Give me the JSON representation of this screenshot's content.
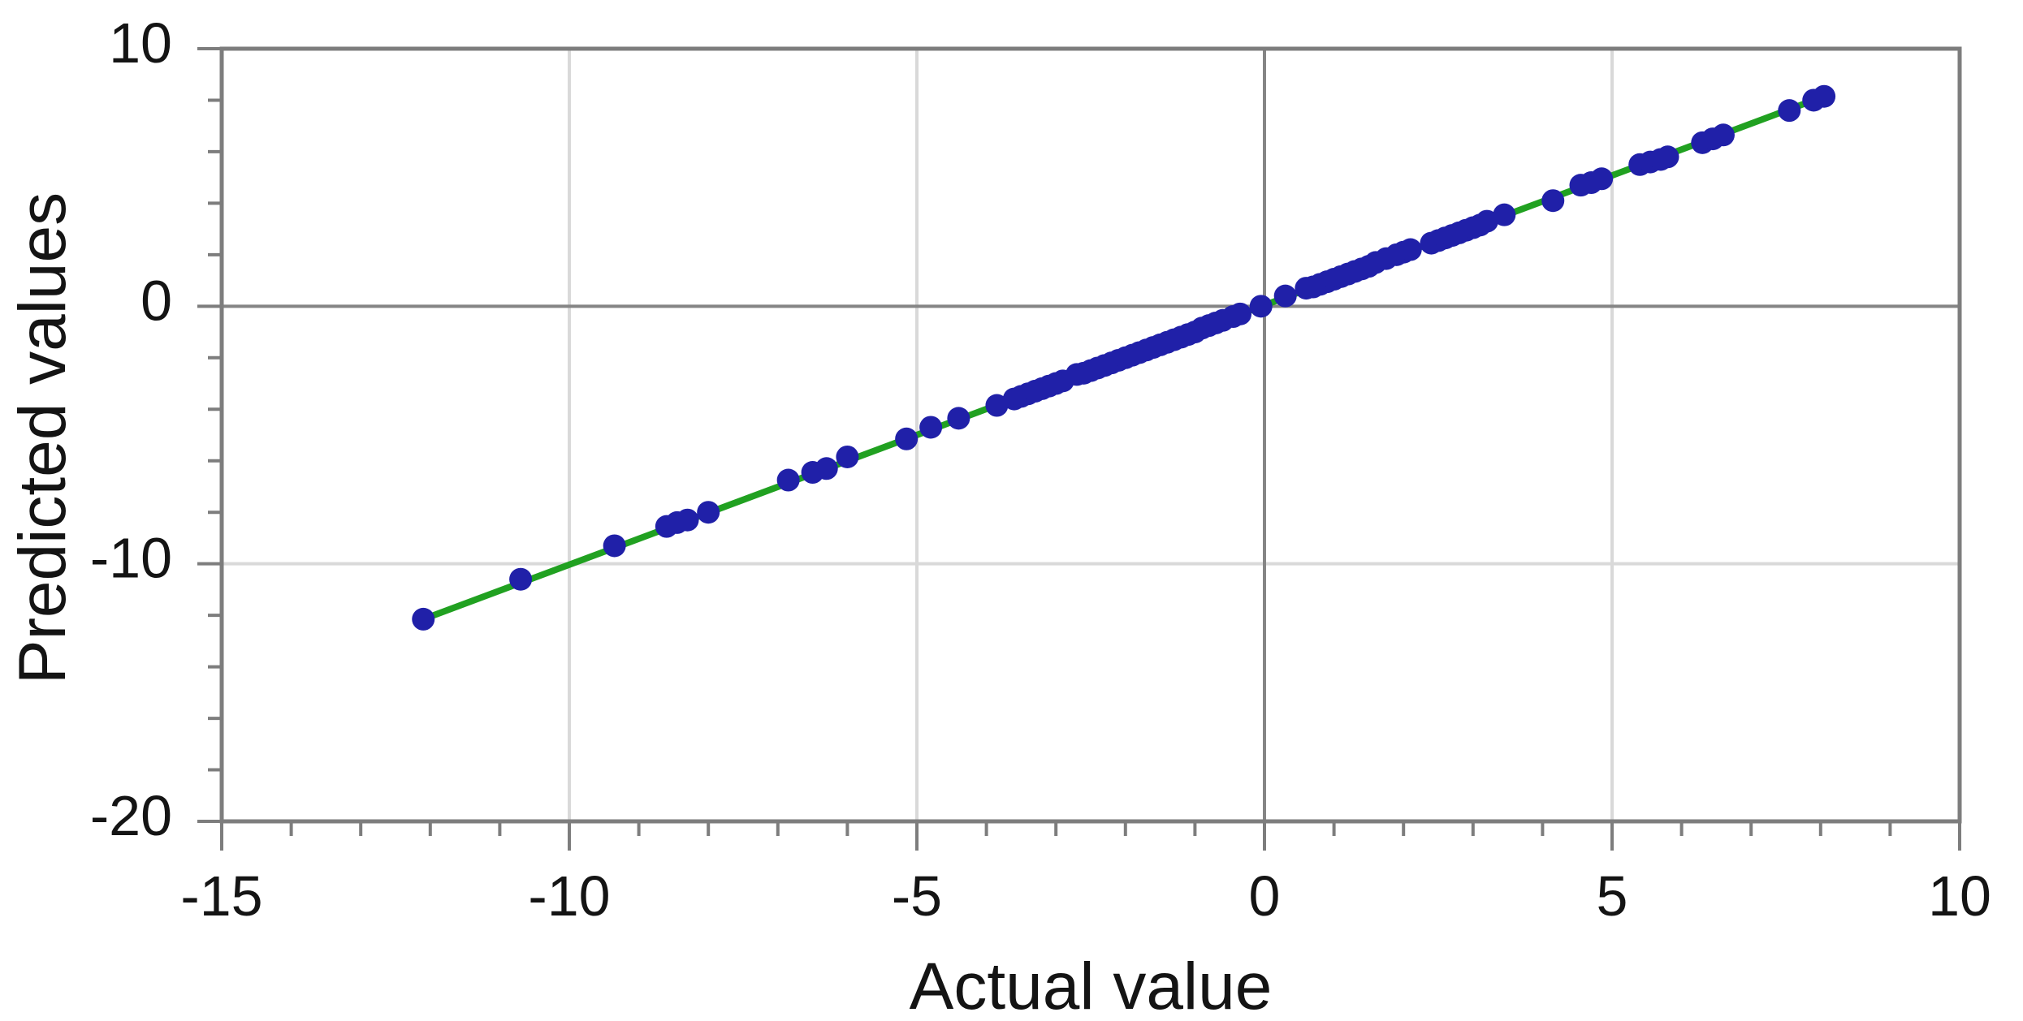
{
  "chart_data": {
    "type": "scatter",
    "title": "",
    "xlabel": "Actual value",
    "ylabel": "Predicted values",
    "xlim": [
      -15,
      10
    ],
    "ylim": [
      -20,
      10
    ],
    "x_major_ticks": [
      -15,
      -10,
      -5,
      0,
      5,
      10
    ],
    "x_tick_labels": [
      "-15",
      "-10",
      "-5",
      "0",
      "5",
      "10"
    ],
    "x_minor_step": 1,
    "y_major_ticks": [
      10,
      0,
      -10,
      -20
    ],
    "y_tick_labels": [
      "10",
      "0",
      "-10",
      "-20"
    ],
    "y_minor_step": 2,
    "grid": {
      "x_light": [
        -10,
        -5,
        5
      ],
      "x_dark": [
        0
      ],
      "y_light": [
        -10
      ],
      "y_dark": [
        0
      ]
    },
    "legend": null,
    "fit_line": {
      "name": "fit-line",
      "from": [
        -12.1,
        -12.15
      ],
      "to": [
        8.05,
        8.15
      ]
    },
    "series": [
      {
        "name": "predicted-vs-actual",
        "points": [
          [
            -12.1,
            -12.15
          ],
          [
            -10.7,
            -10.6
          ],
          [
            -9.35,
            -9.3
          ],
          [
            -8.6,
            -8.55
          ],
          [
            -8.45,
            -8.4
          ],
          [
            -8.3,
            -8.3
          ],
          [
            -8.0,
            -8.0
          ],
          [
            -6.85,
            -6.75
          ],
          [
            -6.5,
            -6.45
          ],
          [
            -6.3,
            -6.3
          ],
          [
            -6.0,
            -5.85
          ],
          [
            -5.15,
            -5.15
          ],
          [
            -4.8,
            -4.7
          ],
          [
            -4.4,
            -4.35
          ],
          [
            -3.85,
            -3.85
          ],
          [
            -3.6,
            -3.6
          ],
          [
            -3.5,
            -3.5
          ],
          [
            -3.4,
            -3.4
          ],
          [
            -3.3,
            -3.3
          ],
          [
            -3.2,
            -3.2
          ],
          [
            -3.1,
            -3.1
          ],
          [
            -3.0,
            -3.0
          ],
          [
            -2.9,
            -2.9
          ],
          [
            -2.7,
            -2.65
          ],
          [
            -2.6,
            -2.6
          ],
          [
            -2.5,
            -2.5
          ],
          [
            -2.4,
            -2.4
          ],
          [
            -2.3,
            -2.3
          ],
          [
            -2.2,
            -2.2
          ],
          [
            -2.1,
            -2.1
          ],
          [
            -2.0,
            -2.0
          ],
          [
            -1.9,
            -1.9
          ],
          [
            -1.8,
            -1.8
          ],
          [
            -1.7,
            -1.7
          ],
          [
            -1.6,
            -1.6
          ],
          [
            -1.5,
            -1.5
          ],
          [
            -1.4,
            -1.4
          ],
          [
            -1.3,
            -1.3
          ],
          [
            -1.2,
            -1.2
          ],
          [
            -1.1,
            -1.1
          ],
          [
            -1.0,
            -1.0
          ],
          [
            -0.9,
            -0.85
          ],
          [
            -0.8,
            -0.75
          ],
          [
            -0.7,
            -0.65
          ],
          [
            -0.6,
            -0.55
          ],
          [
            -0.45,
            -0.4
          ],
          [
            -0.35,
            -0.3
          ],
          [
            -0.05,
            0.0
          ],
          [
            0.3,
            0.4
          ],
          [
            0.6,
            0.7
          ],
          [
            0.7,
            0.75
          ],
          [
            0.8,
            0.85
          ],
          [
            0.9,
            0.95
          ],
          [
            1.0,
            1.05
          ],
          [
            1.1,
            1.15
          ],
          [
            1.2,
            1.25
          ],
          [
            1.3,
            1.35
          ],
          [
            1.4,
            1.45
          ],
          [
            1.5,
            1.55
          ],
          [
            1.6,
            1.7
          ],
          [
            1.75,
            1.85
          ],
          [
            1.9,
            2.0
          ],
          [
            2.0,
            2.1
          ],
          [
            2.1,
            2.2
          ],
          [
            2.4,
            2.45
          ],
          [
            2.5,
            2.55
          ],
          [
            2.6,
            2.65
          ],
          [
            2.7,
            2.75
          ],
          [
            2.8,
            2.85
          ],
          [
            2.9,
            2.95
          ],
          [
            3.0,
            3.05
          ],
          [
            3.1,
            3.15
          ],
          [
            3.2,
            3.3
          ],
          [
            3.45,
            3.55
          ],
          [
            4.15,
            4.1
          ],
          [
            4.55,
            4.7
          ],
          [
            4.7,
            4.8
          ],
          [
            4.85,
            4.95
          ],
          [
            5.4,
            5.5
          ],
          [
            5.55,
            5.6
          ],
          [
            5.7,
            5.7
          ],
          [
            5.8,
            5.8
          ],
          [
            6.3,
            6.35
          ],
          [
            6.45,
            6.5
          ],
          [
            6.6,
            6.65
          ],
          [
            7.55,
            7.6
          ],
          [
            7.9,
            8.0
          ],
          [
            8.05,
            8.15
          ]
        ]
      }
    ]
  },
  "colors": {
    "point": "#2020a8",
    "line": "#21a121",
    "grid_light": "#d9d9d9",
    "grid_dark": "#858585",
    "spine": "#7d7d7d",
    "tick": "#7d7d7d",
    "text": "#141414"
  }
}
